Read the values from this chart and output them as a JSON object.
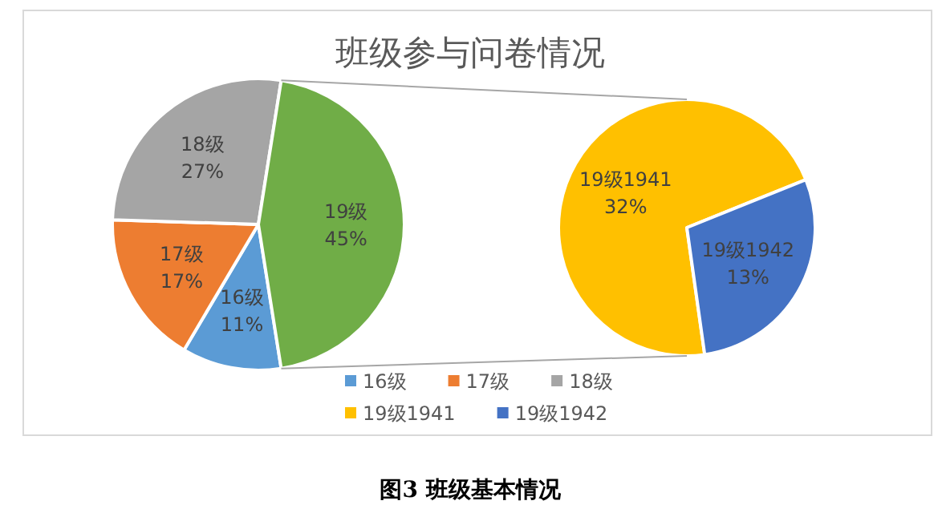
{
  "chart_data": [
    {
      "type": "pie",
      "title": "班级参与问卷情况",
      "categories": [
        "16级",
        "17级",
        "18级",
        "19级"
      ],
      "values": [
        11,
        17,
        27,
        45
      ],
      "colors": [
        "#5b9bd5",
        "#ed7d31",
        "#a5a5a5",
        "#70ad47"
      ],
      "value_labels": [
        "11%",
        "17%",
        "27%",
        "45%"
      ],
      "legend": "bottom",
      "annotations": [
        "图3 班级基本情况"
      ]
    },
    {
      "type": "pie",
      "categories": [
        "19级1941",
        "19级1942"
      ],
      "values": [
        32,
        13
      ],
      "colors": [
        "#ffc000",
        "#4472c4"
      ],
      "value_labels": [
        "32%",
        "13%"
      ],
      "legend": "bottom"
    }
  ]
}
